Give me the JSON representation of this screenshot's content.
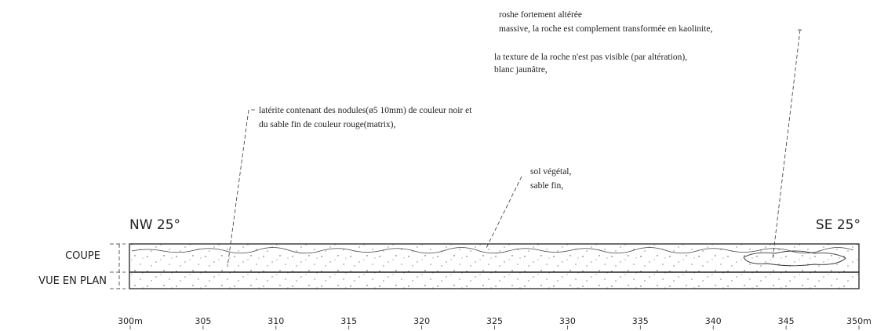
{
  "annotations": {
    "kaolinite_1": "roshe fortement altérée",
    "kaolinite_2": "massive,  la roche est complement transformée en kaolinite,",
    "texture_1": "la texture de la roche n'est pas visible (par altération),",
    "texture_2": "blanc jaunâtre,",
    "laterite_1": "latérite contenant des nodules(ø5 10mm) de couleur noir et",
    "laterite_2": "du sable fin de couleur rouge(matrix),",
    "sol_1": "sol végétal,",
    "sol_2": "sable fin,"
  },
  "directions": {
    "left": "NW 25°",
    "right": "SE 25°"
  },
  "sections": {
    "top": "COUPE",
    "bottom": "VUE EN PLAN"
  },
  "scale": {
    "labels": [
      "300m",
      "305",
      "310",
      "315",
      "320",
      "325",
      "330",
      "335",
      "340",
      "345",
      "350m"
    ]
  }
}
